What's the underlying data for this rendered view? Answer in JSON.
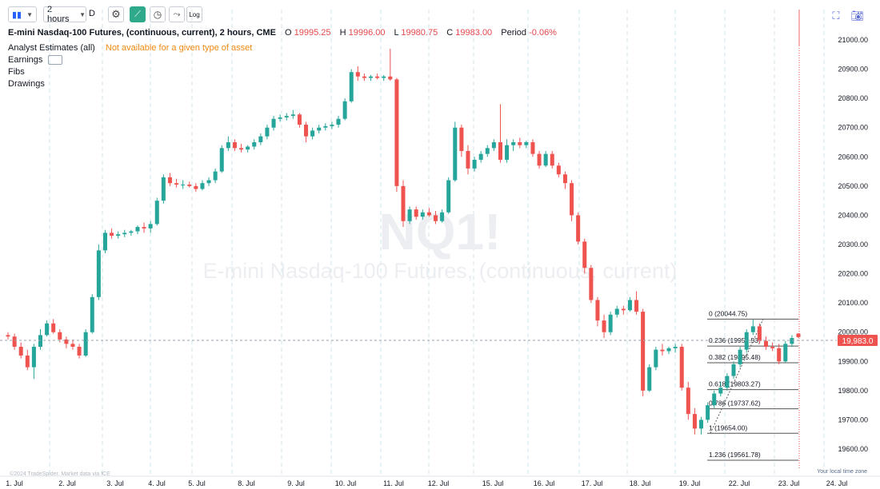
{
  "toolbar": {
    "chart_type_icon": "candles-icon",
    "interval": "2 hours",
    "d_label": "D",
    "log_label": "Log"
  },
  "legend": {
    "title": "E-mini Nasdaq-100 Futures, (continuous, current), 2 hours, CME",
    "o_label": "O",
    "o_value": "19995.25",
    "h_label": "H",
    "h_value": "19996.00",
    "l_label": "L",
    "l_value": "19980.75",
    "c_label": "C",
    "c_value": "19983.00",
    "period_label": "Period",
    "period_value": "-0.06%",
    "analyst": "Analyst Estimates (all)",
    "analyst_note": "Not available for a given type of asset",
    "earnings": "Earnings",
    "fibs": "Fibs",
    "drawings": "Drawings"
  },
  "watermark": {
    "symbol": "NQ1!",
    "name": "E-mini Nasdaq-100 Futures, (continuous, current)"
  },
  "price_axis": {
    "labels": [
      "21000.00",
      "20900.00",
      "20800.00",
      "20700.00",
      "20600.00",
      "20500.00",
      "20400.00",
      "20300.00",
      "20200.00",
      "20100.00",
      "20000.00",
      "19900.00",
      "19800.00",
      "19700.00",
      "19600.00"
    ],
    "last_price": "19,983.0"
  },
  "time_axis": {
    "labels": [
      "1. Jul",
      "2. Jul",
      "3. Jul",
      "4. Jul",
      "5. Jul",
      "8. Jul",
      "9. Jul",
      "10. Jul",
      "11. Jul",
      "12. Jul",
      "15. Jul",
      "16. Jul",
      "17. Jul",
      "18. Jul",
      "19. Jul",
      "22. Jul",
      "23. Jul",
      "24. Jul"
    ]
  },
  "fib_levels": [
    {
      "ratio": "0",
      "price": "20044.75",
      "label": "0 (20044.75)"
    },
    {
      "ratio": "0.236",
      "price": "19952.53",
      "label": "0.236 (19952.53)"
    },
    {
      "ratio": "0.382",
      "price": "19895.48",
      "label": "0.382 (19895.48)"
    },
    {
      "ratio": "0.618",
      "price": "19803.27",
      "label": "0.618 (19803.27)"
    },
    {
      "ratio": "0.786",
      "price": "19737.62",
      "label": "0.786 (19737.62)"
    },
    {
      "ratio": "1",
      "price": "19654.00",
      "label": "1 (19654.00)"
    },
    {
      "ratio": "1.236",
      "price": "19561.78",
      "label": "1.236 (19561.78)"
    }
  ],
  "footer": {
    "copyright": "©2024 TradeSpider. Market data via ICE",
    "timezone": "Your local time zone"
  },
  "colors": {
    "up": "#26a69a",
    "down": "#ef5350",
    "accent": "#2ea98a",
    "orange": "#ef8a12",
    "last_price_bg": "#ef5350"
  },
  "chart_data": {
    "type": "candlestick",
    "candles": [
      [
        19990,
        20000,
        19975,
        19985
      ],
      [
        19985,
        19995,
        19940,
        19950
      ],
      [
        19950,
        19965,
        19910,
        19920
      ],
      [
        19920,
        19940,
        19870,
        19880
      ],
      [
        19880,
        19960,
        19840,
        19950
      ],
      [
        19950,
        20010,
        19940,
        19990
      ],
      [
        19990,
        20040,
        19985,
        20030
      ],
      [
        20030,
        20045,
        19995,
        20000
      ],
      [
        20000,
        20010,
        19965,
        19975
      ],
      [
        19975,
        19985,
        19945,
        19960
      ],
      [
        19960,
        19975,
        19940,
        19950
      ],
      [
        19950,
        19960,
        19910,
        19920
      ],
      [
        19920,
        20010,
        19915,
        20000
      ],
      [
        20000,
        20130,
        19995,
        20120
      ],
      [
        20120,
        20300,
        20110,
        20280
      ],
      [
        20280,
        20350,
        20270,
        20340
      ],
      [
        20340,
        20355,
        20320,
        20330
      ],
      [
        20330,
        20345,
        20320,
        20335
      ],
      [
        20335,
        20350,
        20325,
        20340
      ],
      [
        20340,
        20350,
        20330,
        20345
      ],
      [
        20345,
        20365,
        20335,
        20360
      ],
      [
        20360,
        20375,
        20340,
        20355
      ],
      [
        20355,
        20380,
        20340,
        20370
      ],
      [
        20370,
        20460,
        20365,
        20450
      ],
      [
        20450,
        20540,
        20440,
        20530
      ],
      [
        20530,
        20545,
        20500,
        20510
      ],
      [
        20510,
        20525,
        20495,
        20505
      ],
      [
        20505,
        20520,
        20490,
        20505
      ],
      [
        20505,
        20515,
        20495,
        20500
      ],
      [
        20500,
        20510,
        20480,
        20490
      ],
      [
        20490,
        20520,
        20485,
        20510
      ],
      [
        20510,
        20530,
        20500,
        20520
      ],
      [
        20520,
        20560,
        20510,
        20550
      ],
      [
        20550,
        20640,
        20545,
        20630
      ],
      [
        20630,
        20670,
        20620,
        20650
      ],
      [
        20650,
        20660,
        20620,
        20630
      ],
      [
        20630,
        20645,
        20615,
        20625
      ],
      [
        20625,
        20640,
        20615,
        20635
      ],
      [
        20635,
        20660,
        20625,
        20650
      ],
      [
        20650,
        20680,
        20640,
        20670
      ],
      [
        20670,
        20710,
        20660,
        20700
      ],
      [
        20700,
        20740,
        20690,
        20730
      ],
      [
        20730,
        20745,
        20720,
        20735
      ],
      [
        20735,
        20750,
        20725,
        20740
      ],
      [
        20740,
        20760,
        20730,
        20745
      ],
      [
        20745,
        20750,
        20700,
        20710
      ],
      [
        20710,
        20720,
        20650,
        20670
      ],
      [
        20670,
        20700,
        20660,
        20690
      ],
      [
        20690,
        20710,
        20680,
        20700
      ],
      [
        20700,
        20715,
        20690,
        20705
      ],
      [
        20705,
        20720,
        20695,
        20710
      ],
      [
        20710,
        20740,
        20700,
        20730
      ],
      [
        20730,
        20800,
        20725,
        20790
      ],
      [
        20790,
        20900,
        20785,
        20890
      ],
      [
        20890,
        20910,
        20860,
        20875
      ],
      [
        20875,
        20885,
        20860,
        20870
      ],
      [
        20870,
        20880,
        20860,
        20875
      ],
      [
        20875,
        20885,
        20865,
        20870
      ],
      [
        20870,
        20880,
        20860,
        20875
      ],
      [
        20875,
        20970,
        20860,
        20865
      ],
      [
        20865,
        20870,
        20480,
        20500
      ],
      [
        20500,
        20520,
        20360,
        20380
      ],
      [
        20380,
        20430,
        20370,
        20420
      ],
      [
        20420,
        20430,
        20385,
        20395
      ],
      [
        20395,
        20420,
        20385,
        20410
      ],
      [
        20410,
        20425,
        20395,
        20400
      ],
      [
        20400,
        20415,
        20370,
        20380
      ],
      [
        20380,
        20420,
        20375,
        20410
      ],
      [
        20410,
        20530,
        20405,
        20520
      ],
      [
        20520,
        20720,
        20515,
        20700
      ],
      [
        20700,
        20710,
        20600,
        20620
      ],
      [
        20620,
        20640,
        20540,
        20560
      ],
      [
        20560,
        20600,
        20550,
        20590
      ],
      [
        20590,
        20620,
        20580,
        20610
      ],
      [
        20610,
        20640,
        20600,
        20630
      ],
      [
        20630,
        20660,
        20620,
        20650
      ],
      [
        20650,
        20780,
        20580,
        20590
      ],
      [
        20590,
        20660,
        20580,
        20640
      ],
      [
        20640,
        20660,
        20620,
        20650
      ],
      [
        20650,
        20665,
        20630,
        20640
      ],
      [
        20640,
        20655,
        20630,
        20650
      ],
      [
        20650,
        20660,
        20600,
        20610
      ],
      [
        20610,
        20620,
        20560,
        20570
      ],
      [
        20570,
        20620,
        20565,
        20610
      ],
      [
        20610,
        20620,
        20560,
        20570
      ],
      [
        20570,
        20580,
        20530,
        20540
      ],
      [
        20540,
        20550,
        20490,
        20510
      ],
      [
        20510,
        20520,
        20380,
        20400
      ],
      [
        20400,
        20410,
        20300,
        20310
      ],
      [
        20310,
        20320,
        20200,
        20220
      ],
      [
        20220,
        20230,
        20100,
        20110
      ],
      [
        20110,
        20120,
        20020,
        20040
      ],
      [
        20040,
        20060,
        19980,
        20000
      ],
      [
        20000,
        20070,
        19990,
        20060
      ],
      [
        20060,
        20090,
        20050,
        20080
      ],
      [
        20080,
        20090,
        20060,
        20075
      ],
      [
        20075,
        20120,
        20070,
        20110
      ],
      [
        20110,
        20140,
        20060,
        20070
      ],
      [
        20070,
        20080,
        19780,
        19800
      ],
      [
        19800,
        19890,
        19795,
        19880
      ],
      [
        19880,
        19950,
        19870,
        19940
      ],
      [
        19940,
        19960,
        19920,
        19935
      ],
      [
        19935,
        19950,
        19925,
        19945
      ],
      [
        19945,
        19960,
        19930,
        19950
      ],
      [
        19950,
        19960,
        19800,
        19810
      ],
      [
        19810,
        19830,
        19700,
        19720
      ],
      [
        19720,
        19740,
        19650,
        19670
      ],
      [
        19670,
        19710,
        19650,
        19700
      ],
      [
        19700,
        19760,
        19690,
        19750
      ],
      [
        19750,
        19800,
        19740,
        19790
      ],
      [
        19790,
        19830,
        19780,
        19810
      ],
      [
        19810,
        19860,
        19800,
        19850
      ],
      [
        19850,
        19900,
        19840,
        19890
      ],
      [
        19890,
        19950,
        19880,
        19940
      ],
      [
        19940,
        20010,
        19930,
        20000
      ],
      [
        20000,
        20044,
        19990,
        20020
      ],
      [
        20020,
        20030,
        19960,
        19970
      ],
      [
        19970,
        19985,
        19940,
        19950
      ],
      [
        19950,
        19965,
        19935,
        19945
      ],
      [
        19945,
        19960,
        19890,
        19900
      ],
      [
        19900,
        19970,
        19895,
        19960
      ],
      [
        19960,
        19990,
        19950,
        19980
      ],
      [
        19995,
        19996,
        19980,
        19983
      ]
    ],
    "ylim": [
      19530,
      21060
    ],
    "last_price": 19983.0
  }
}
